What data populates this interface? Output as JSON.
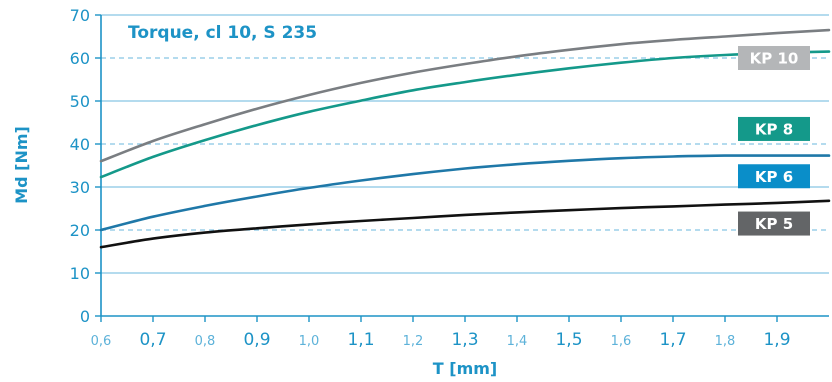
{
  "chart_data": {
    "type": "line",
    "title": "Torque, cl 10, S 235",
    "xlabel": "T [mm]",
    "ylabel": "Md [Nm]",
    "xlim": [
      0.6,
      2.0
    ],
    "ylim": [
      0,
      70
    ],
    "yticks": [
      "0",
      "10",
      "20",
      "30",
      "40",
      "50",
      "60",
      "70"
    ],
    "xticks": [
      {
        "value": 0.6,
        "label": "0,6",
        "major": false
      },
      {
        "value": 0.7,
        "label": "0,7",
        "major": true
      },
      {
        "value": 0.8,
        "label": "0,8",
        "major": false
      },
      {
        "value": 0.9,
        "label": "0,9",
        "major": true
      },
      {
        "value": 1.0,
        "label": "1,0",
        "major": false
      },
      {
        "value": 1.1,
        "label": "1,1",
        "major": true
      },
      {
        "value": 1.2,
        "label": "1,2",
        "major": false
      },
      {
        "value": 1.3,
        "label": "1,3",
        "major": true
      },
      {
        "value": 1.4,
        "label": "1,4",
        "major": false
      },
      {
        "value": 1.5,
        "label": "1,5",
        "major": true
      },
      {
        "value": 1.6,
        "label": "1,6",
        "major": false
      },
      {
        "value": 1.7,
        "label": "1,7",
        "major": true
      },
      {
        "value": 1.8,
        "label": "1,8",
        "major": false
      },
      {
        "value": 1.9,
        "label": "1,9",
        "major": true
      }
    ],
    "grid": {
      "solid": [
        10,
        30,
        50,
        70
      ],
      "dashed": [
        20,
        40,
        60
      ]
    },
    "x": [
      0.6,
      0.7,
      0.8,
      0.9,
      1.0,
      1.1,
      1.2,
      1.3,
      1.4,
      1.5,
      1.6,
      1.7,
      1.8,
      1.9,
      2.0
    ],
    "series": [
      {
        "name": "KP 10",
        "color": "#7a7e82",
        "values": [
          36.0,
          40.7,
          44.6,
          48.2,
          51.4,
          54.2,
          56.6,
          58.6,
          60.4,
          61.9,
          63.2,
          64.2,
          65.0,
          65.8,
          66.5
        ]
      },
      {
        "name": "KP 8",
        "color": "#14998a",
        "values": [
          32.3,
          37.0,
          40.9,
          44.4,
          47.5,
          50.1,
          52.5,
          54.4,
          56.1,
          57.6,
          58.9,
          60.0,
          60.7,
          61.2,
          61.5
        ]
      },
      {
        "name": "KP 6",
        "color": "#1f78a8",
        "values": [
          20.0,
          23.1,
          25.6,
          27.8,
          29.8,
          31.5,
          33.0,
          34.3,
          35.3,
          36.1,
          36.7,
          37.1,
          37.3,
          37.3,
          37.3
        ]
      },
      {
        "name": "KP 5",
        "color": "#111111",
        "values": [
          16.0,
          18.0,
          19.4,
          20.4,
          21.3,
          22.1,
          22.8,
          23.5,
          24.1,
          24.6,
          25.1,
          25.5,
          25.9,
          26.3,
          26.8
        ]
      }
    ],
    "legend": [
      {
        "label": "KP 10",
        "color": "#b4b6b8",
        "value_at": 60.0
      },
      {
        "label": "KP 8",
        "color": "#14998a",
        "value_at": 43.5
      },
      {
        "label": "KP 6",
        "color": "#0a8ec9",
        "value_at": 32.5
      },
      {
        "label": "KP 5",
        "color": "#636567",
        "value_at": 21.5
      }
    ],
    "legend_placement": "right",
    "colors": {
      "axis": "#1d93c6",
      "grid": "#86c5e3",
      "title": "#1d93c6",
      "tick_minor": "#5db2d9",
      "tick_major": "#1d93c6"
    }
  }
}
